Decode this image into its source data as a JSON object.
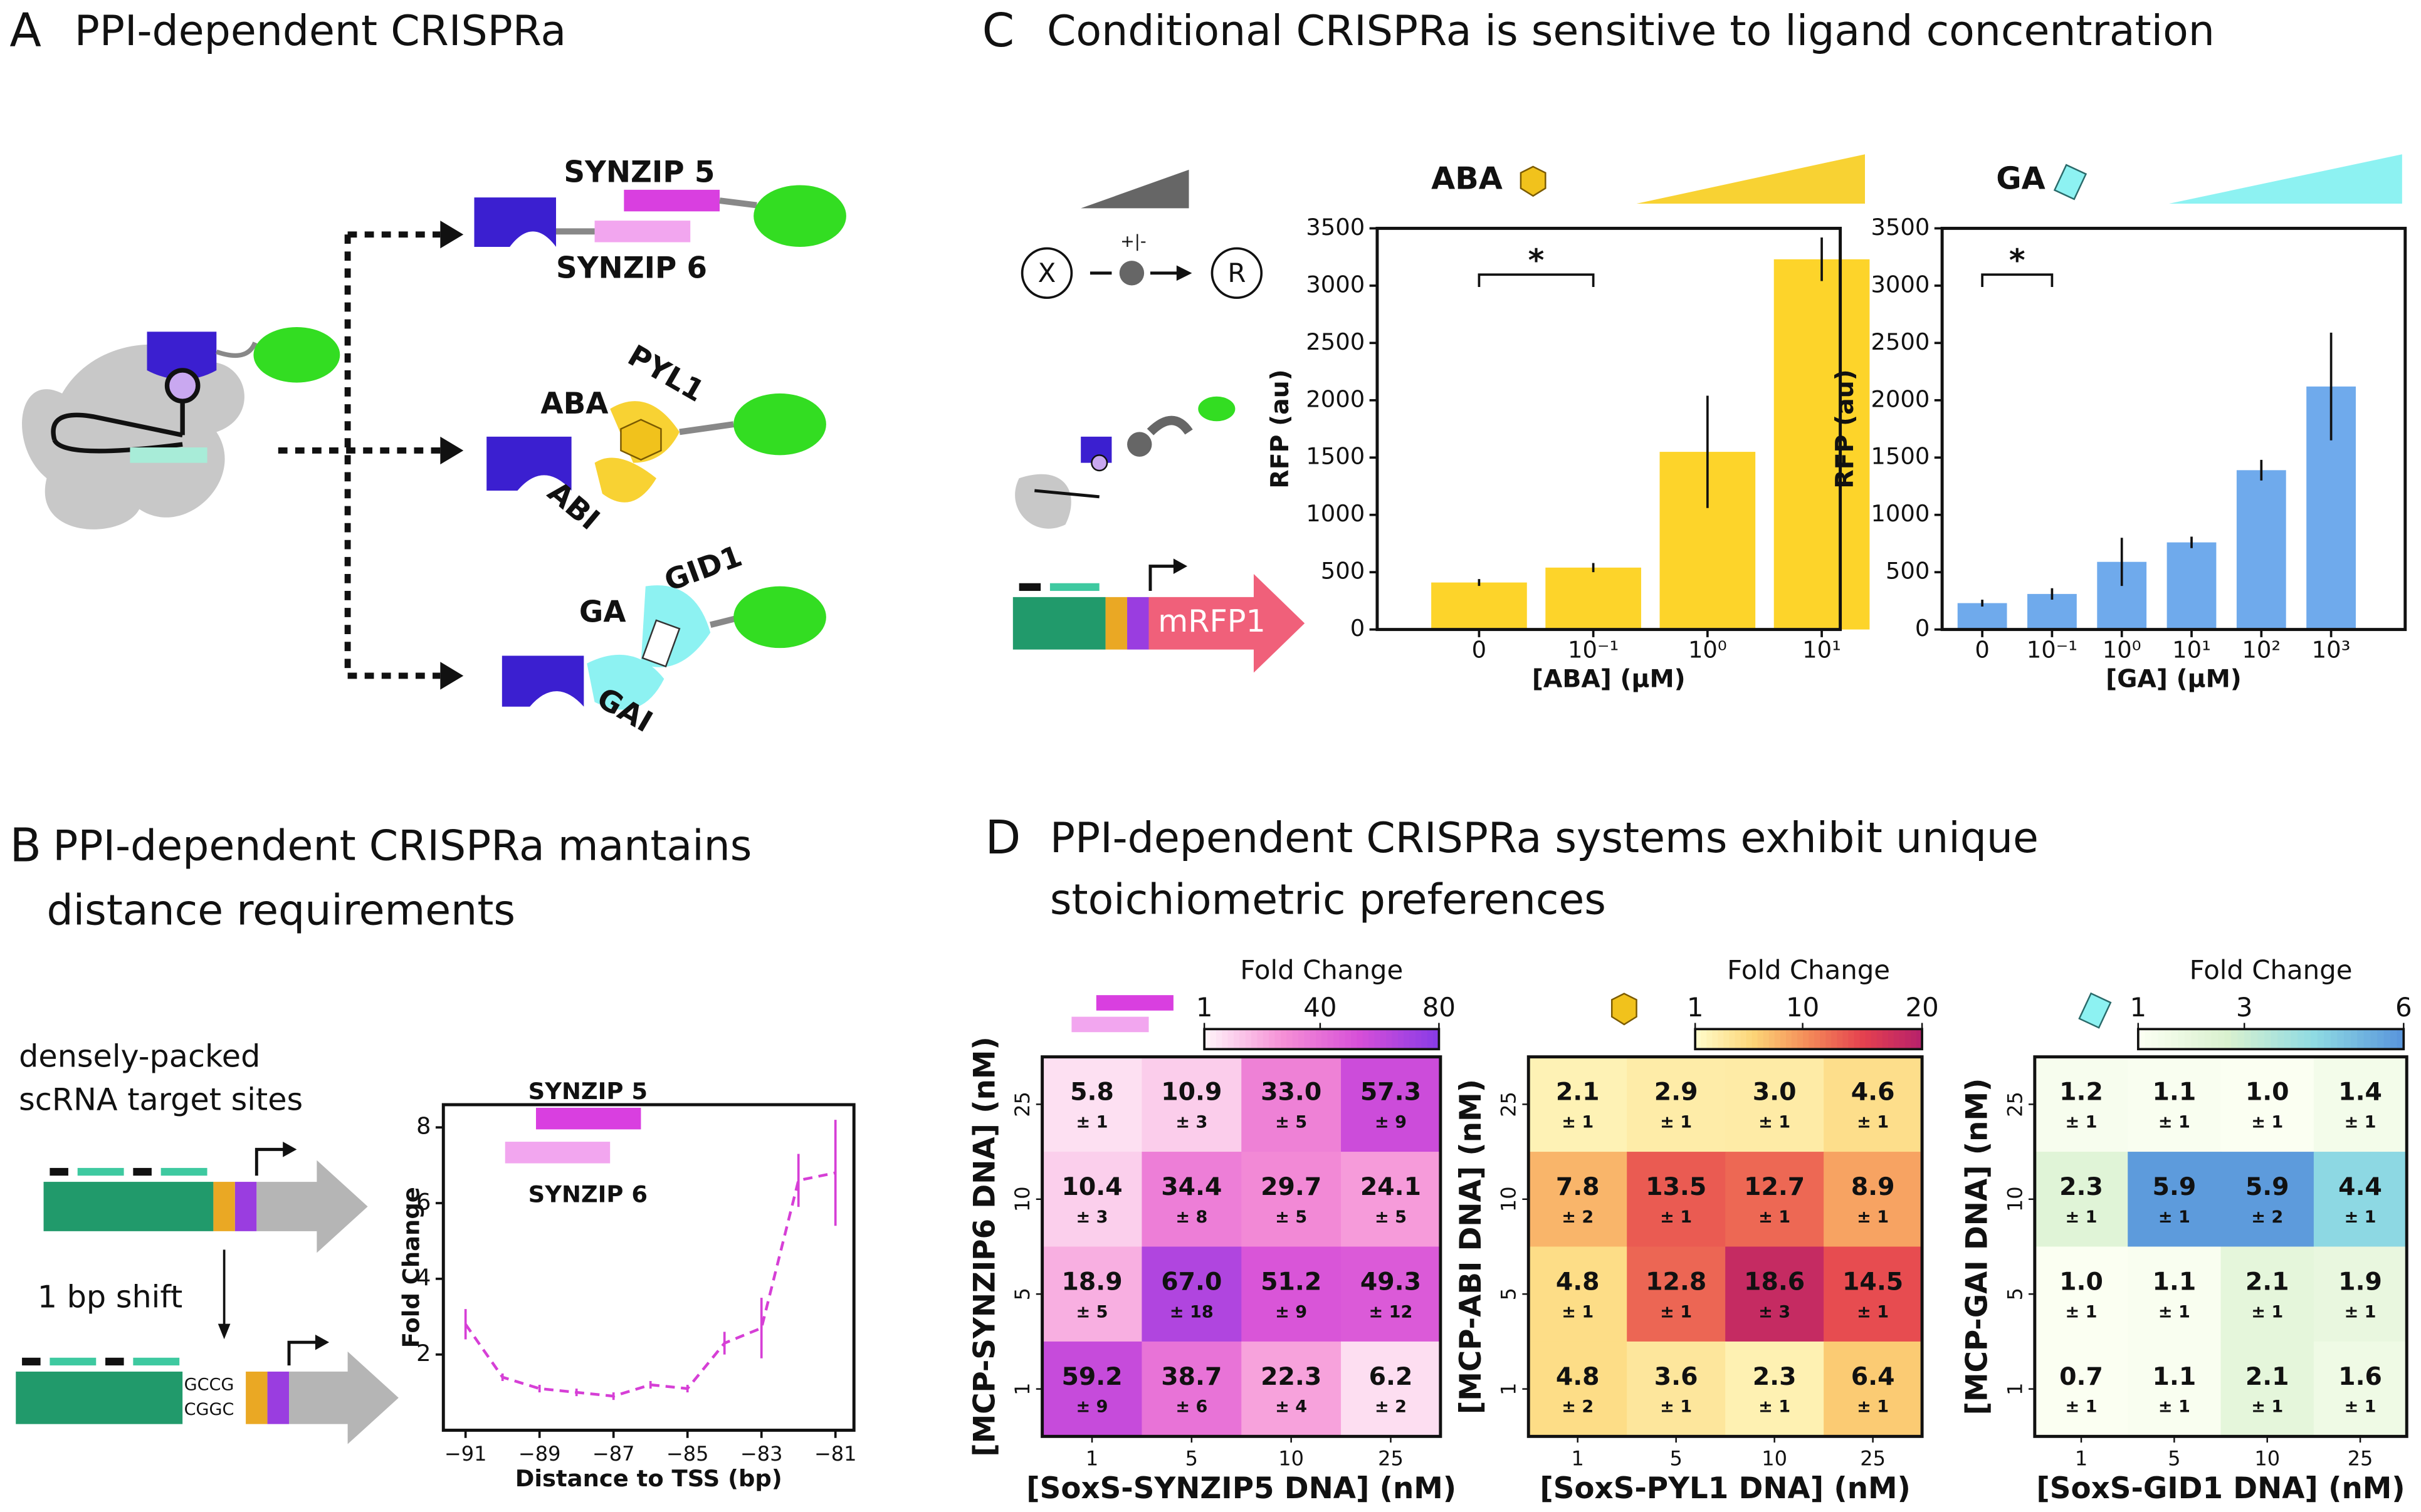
{
  "panels": {
    "a": {
      "letter": "A",
      "title": "PPI-dependent CRISPRa",
      "labels": [
        "SYNZIP 5",
        "SYNZIP 6",
        "PYL1",
        "ABA",
        "ABI",
        "GID1",
        "GA",
        "GAI"
      ]
    },
    "b": {
      "letter": "B",
      "title": [
        "PPI-dependent CRISPRa mantains",
        "distance requirements"
      ],
      "labels": [
        "densely-packed",
        "scRNA target sites",
        "1 bp shift",
        "GCCG",
        "CGGC"
      ]
    },
    "c": {
      "letter": "C",
      "title": "Conditional CRISPRa is sensitive to ligand concentration",
      "labels": [
        "X",
        "R",
        "+|-",
        "mRFP1"
      ]
    },
    "d": {
      "letter": "D",
      "title": [
        "PPI-dependent CRISPRa systems exhibit unique",
        "stoichiometric preferences"
      ]
    }
  },
  "chart_data": [
    {
      "type": "bar",
      "title": "ABA",
      "categories": [
        "0",
        "10⁻¹",
        "10⁰",
        "10¹"
      ],
      "values": [
        410,
        540,
        1550,
        3230
      ],
      "errors": [
        30,
        40,
        490,
        190
      ],
      "color": "#fdd42a",
      "ylim": [
        0,
        3500
      ],
      "yticks": [
        0,
        500,
        1000,
        1500,
        2000,
        2500,
        3000,
        3500
      ],
      "xlabel": "[ABA] (µM)",
      "ylabel": "RFP (au)",
      "annotation": "*"
    },
    {
      "type": "bar",
      "title": "GA",
      "categories": [
        "0",
        "10⁻¹",
        "10⁰",
        "10¹",
        "10²",
        "10³"
      ],
      "values": [
        230,
        310,
        590,
        760,
        1390,
        2120
      ],
      "errors": [
        30,
        50,
        210,
        50,
        90,
        470
      ],
      "color": "#6faaec",
      "ylim": [
        0,
        3500
      ],
      "yticks": [
        0,
        500,
        1000,
        1500,
        2000,
        2500,
        3000,
        3500
      ],
      "xlabel": "[GA] (µM)",
      "ylabel": "RFP (au)",
      "annotation": "*"
    },
    {
      "type": "line",
      "x": [
        -91,
        -90,
        -89,
        -88,
        -87,
        -86,
        -85,
        -84,
        -83,
        -82,
        -81
      ],
      "values": [
        2.8,
        1.4,
        1.1,
        1.0,
        0.9,
        1.2,
        1.1,
        2.3,
        2.7,
        6.6,
        6.8
      ],
      "errors": [
        0.4,
        0.1,
        0.1,
        0.1,
        0.1,
        0.1,
        0.1,
        0.3,
        0.8,
        0.7,
        1.4
      ],
      "color": "#d63fd6",
      "xlim": [
        -91.6,
        -80.5
      ],
      "ylim": [
        0,
        8.6
      ],
      "xticks": [
        {
          "value": -91,
          "label": "−91"
        },
        {
          "value": -89,
          "label": "−89"
        },
        {
          "value": -87,
          "label": "−87"
        },
        {
          "value": -85,
          "label": "−85"
        },
        {
          "value": -83,
          "label": "−83"
        },
        {
          "value": -81,
          "label": "−81"
        }
      ],
      "yticks": [
        2,
        4,
        6,
        8
      ],
      "xlabel": "Distance to TSS (bp)",
      "ylabel": "Fold Change",
      "annotations": [
        "SYNZIP 5",
        "SYNZIP 6"
      ]
    },
    {
      "type": "heatmap",
      "categories": [
        "1",
        "5",
        "10",
        "25"
      ],
      "ycategories": [
        "25",
        "10",
        "5",
        "1"
      ],
      "values": [
        [
          5.8,
          10.9,
          33.0,
          57.3
        ],
        [
          10.4,
          34.4,
          29.7,
          24.1
        ],
        [
          18.9,
          67.0,
          51.2,
          49.3
        ],
        [
          59.2,
          38.7,
          22.3,
          6.2
        ]
      ],
      "value_labels": [
        [
          "5.8",
          "10.9",
          "33.0",
          "57.3"
        ],
        [
          "10.4",
          "34.4",
          "29.7",
          "24.1"
        ],
        [
          "18.9",
          "67.0",
          "51.2",
          "49.3"
        ],
        [
          "59.2",
          "38.7",
          "22.3",
          "6.2"
        ]
      ],
      "errors": [
        [
          1,
          3,
          5,
          9
        ],
        [
          3,
          8,
          5,
          5
        ],
        [
          5,
          18,
          9,
          12
        ],
        [
          9,
          6,
          4,
          2
        ]
      ],
      "error_labels": [
        [
          "± 1",
          "± 3",
          "± 5",
          "± 9"
        ],
        [
          "± 3",
          "± 8",
          "± 5",
          "± 5"
        ],
        [
          "± 5",
          "± 18",
          "± 9",
          "± 12"
        ],
        [
          "± 9",
          "± 6",
          "± 4",
          "± 2"
        ]
      ],
      "colormap": [
        "#fff2f8",
        "#f58fd6",
        "#d64fd8",
        "#8a3ce6"
      ],
      "clim": [
        1,
        80
      ],
      "cticks": [
        1,
        40,
        80
      ],
      "colorbar_label": "Fold Change",
      "xlabel": "[SoxS-SYNZIP5 DNA] (nM)",
      "ylabel": "[MCP-SYNZIP6 DNA] (nM)"
    },
    {
      "type": "heatmap",
      "categories": [
        "1",
        "5",
        "10",
        "25"
      ],
      "ycategories": [
        "25",
        "10",
        "5",
        "1"
      ],
      "values": [
        [
          2.1,
          2.9,
          3.0,
          4.6
        ],
        [
          7.8,
          13.5,
          12.7,
          8.9
        ],
        [
          4.8,
          12.8,
          18.6,
          14.5
        ],
        [
          4.8,
          3.6,
          2.3,
          6.4
        ]
      ],
      "value_labels": [
        [
          "2.1",
          "2.9",
          "3.0",
          "4.6"
        ],
        [
          "7.8",
          "13.5",
          "12.7",
          "8.9"
        ],
        [
          "4.8",
          "12.8",
          "18.6",
          "14.5"
        ],
        [
          "4.8",
          "3.6",
          "2.3",
          "6.4"
        ]
      ],
      "errors": [
        [
          1,
          1,
          1,
          1
        ],
        [
          2,
          1,
          1,
          1
        ],
        [
          1,
          1,
          3,
          1
        ],
        [
          2,
          1,
          1,
          1
        ]
      ],
      "error_labels": [
        [
          "± 1",
          "± 1",
          "± 1",
          "± 1"
        ],
        [
          "± 2",
          "± 1",
          "± 1",
          "± 1"
        ],
        [
          "± 1",
          "± 1",
          "± 3",
          "± 1"
        ],
        [
          "± 2",
          "± 1",
          "± 1",
          "± 1"
        ]
      ],
      "colormap": [
        "#fffbc8",
        "#fcd577",
        "#f48a58",
        "#e4404f",
        "#b8226a"
      ],
      "clim": [
        1,
        20
      ],
      "cticks": [
        1,
        10,
        20
      ],
      "colorbar_label": "Fold Change",
      "xlabel": "[SoxS-PYL1 DNA] (nM)",
      "ylabel": "[MCP-ABI DNA] (nM)"
    },
    {
      "type": "heatmap",
      "categories": [
        "1",
        "5",
        "10",
        "25"
      ],
      "ycategories": [
        "25",
        "10",
        "5",
        "1"
      ],
      "values": [
        [
          1.2,
          1.1,
          1.0,
          1.4
        ],
        [
          2.3,
          5.9,
          5.9,
          4.4
        ],
        [
          1.0,
          1.1,
          2.1,
          1.9
        ],
        [
          0.7,
          1.1,
          2.1,
          1.6
        ]
      ],
      "value_labels": [
        [
          "1.2",
          "1.1",
          "1.0",
          "1.4"
        ],
        [
          "2.3",
          "5.9",
          "5.9",
          "4.4"
        ],
        [
          "1.0",
          "1.1",
          "2.1",
          "1.9"
        ],
        [
          "0.7",
          "1.1",
          "2.1",
          "1.6"
        ]
      ],
      "errors": [
        [
          1,
          1,
          1,
          1
        ],
        [
          1,
          1,
          2,
          1
        ],
        [
          1,
          1,
          1,
          1
        ],
        [
          1,
          1,
          1,
          1
        ]
      ],
      "error_labels": [
        [
          "± 1",
          "± 1",
          "± 1",
          "± 1"
        ],
        [
          "± 1",
          "± 1",
          "± 2",
          "± 1"
        ],
        [
          "± 1",
          "± 1",
          "± 1",
          "± 1"
        ],
        [
          "± 1",
          "± 1",
          "± 1",
          "± 1"
        ]
      ],
      "colormap": [
        "#fbfff2",
        "#d9f1cf",
        "#8fdbe3",
        "#5a97dc"
      ],
      "clim": [
        1,
        6
      ],
      "cticks": [
        1,
        3,
        6
      ],
      "colorbar_label": "Fold Change",
      "xlabel": "[SoxS-GID1 DNA] (nM)",
      "ylabel": "[MCP-GAI DNA] (nM)"
    }
  ]
}
